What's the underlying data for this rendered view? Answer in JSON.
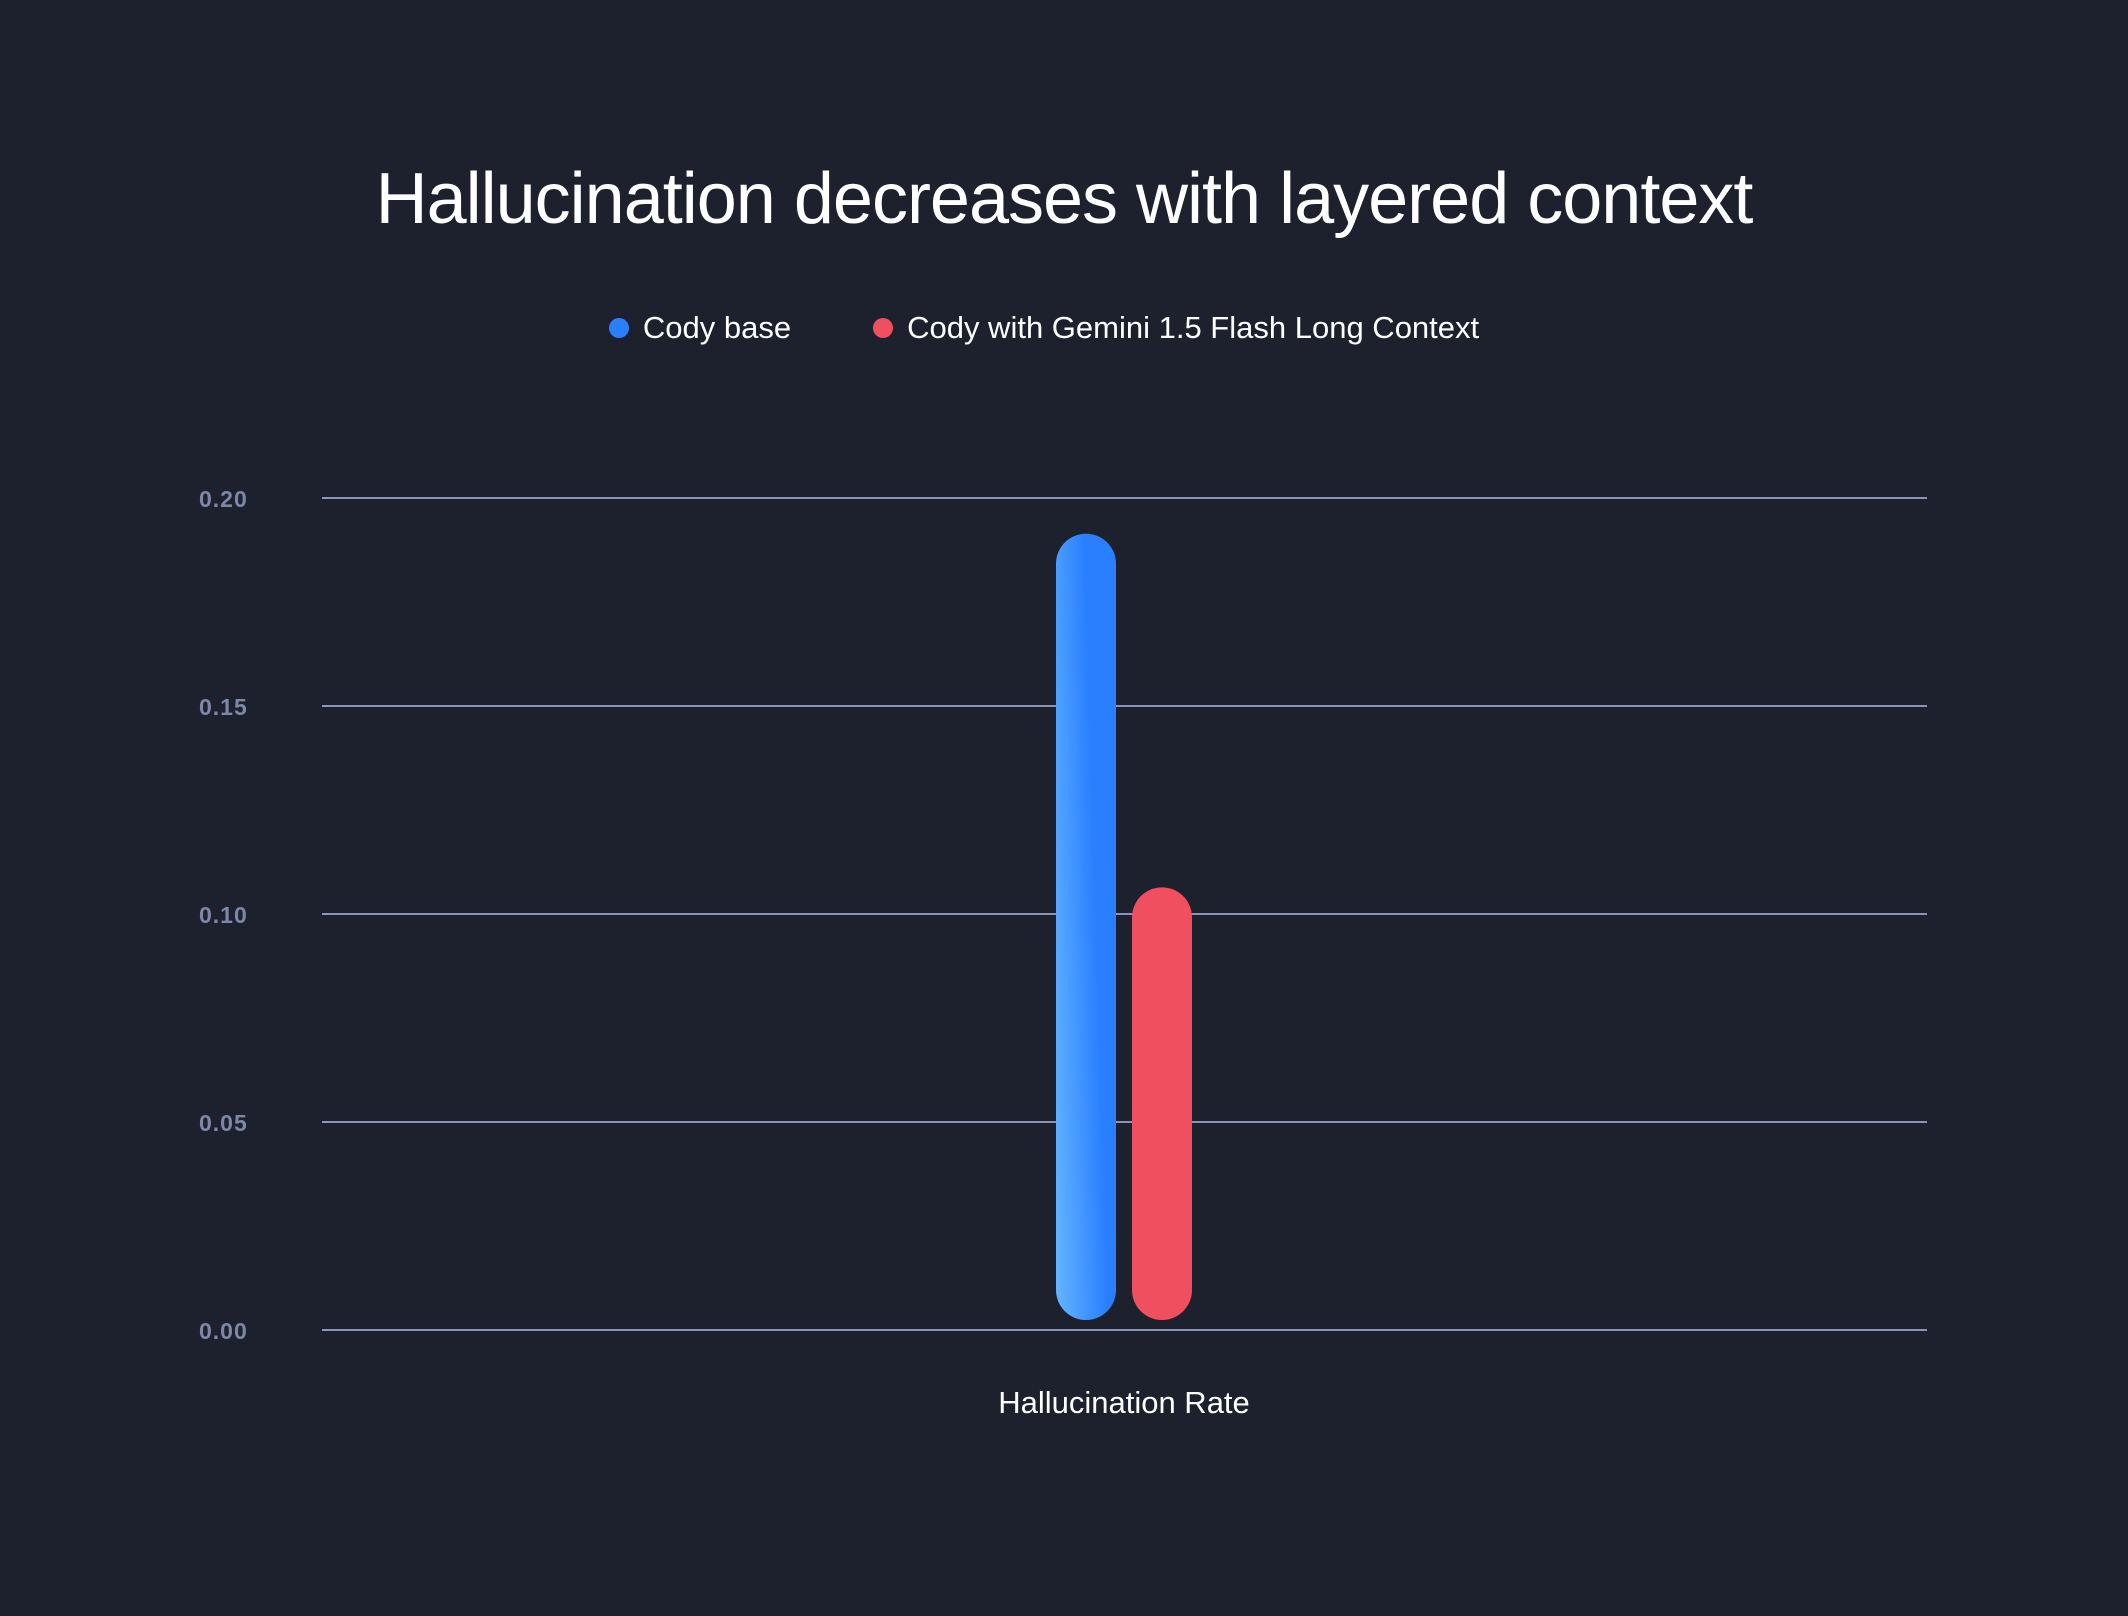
{
  "chart_data": {
    "type": "bar",
    "title": "Hallucination decreases with layered context",
    "categories": [
      "Hallucination Rate"
    ],
    "series": [
      {
        "name": "Cody base",
        "values": [
          0.189
        ],
        "color": "#2a7fff",
        "gradient_from": "#64b5ff"
      },
      {
        "name": "Cody with Gemini 1.5 Flash Long Context",
        "values": [
          0.104
        ],
        "color": "#ef4f5f"
      }
    ],
    "xlabel": "",
    "ylabel": "",
    "ylim": [
      0,
      0.2
    ],
    "yticks": [
      "0.00",
      "0.05",
      "0.10",
      "0.15",
      "0.20"
    ],
    "grid": true,
    "legend_placement": "top-center",
    "background": "#1c212d"
  }
}
